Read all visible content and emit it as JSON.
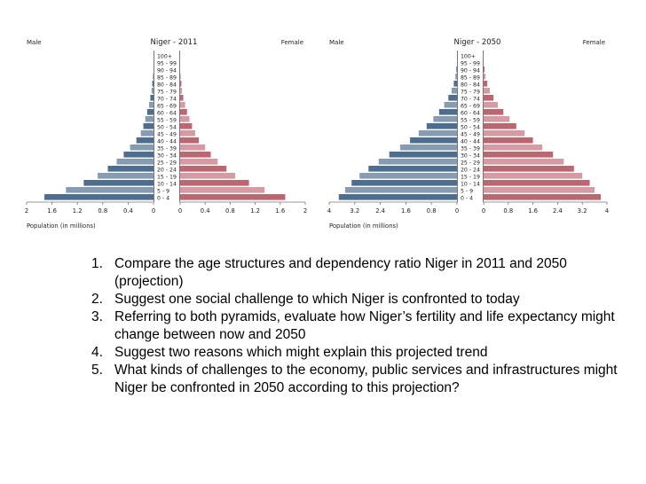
{
  "chart_data": [
    {
      "type": "bar",
      "orientation": "horizontal-pyramid",
      "title": "Niger - 2011",
      "left_label": "Male",
      "right_label": "Female",
      "xlabel": "Population (in millions)",
      "xlim": [
        0,
        2
      ],
      "x_ticks": [
        "2",
        "1.6",
        "1.2",
        "0.8",
        "0.4",
        "0",
        "0",
        "0.4",
        "0.8",
        "1.2",
        "1.6",
        "2"
      ],
      "x_tick_values": [
        2,
        1.6,
        1.2,
        0.8,
        0.4,
        0,
        0,
        0.4,
        0.8,
        1.2,
        1.6,
        2
      ],
      "categories": [
        "100+",
        "95 - 99",
        "90 - 94",
        "85 - 89",
        "80 - 84",
        "75 - 79",
        "70 - 74",
        "65 - 69",
        "60 - 64",
        "55 - 59",
        "50 - 54",
        "45 - 49",
        "40 - 44",
        "35 - 39",
        "30 - 34",
        "25 - 29",
        "20 - 24",
        "15 - 19",
        "10 - 14",
        "5 - 9",
        "0 - 4"
      ],
      "series": [
        {
          "name": "Male",
          "color": "#4f6d8f",
          "values": [
            0,
            0,
            0,
            0.01,
            0.02,
            0.03,
            0.05,
            0.07,
            0.1,
            0.13,
            0.16,
            0.2,
            0.27,
            0.37,
            0.47,
            0.58,
            0.72,
            0.88,
            1.1,
            1.38,
            1.72
          ]
        },
        {
          "name": "Female",
          "color": "#c06470",
          "values": [
            0,
            0,
            0,
            0.01,
            0.02,
            0.03,
            0.05,
            0.08,
            0.11,
            0.15,
            0.19,
            0.24,
            0.3,
            0.4,
            0.49,
            0.6,
            0.74,
            0.88,
            1.1,
            1.35,
            1.68
          ]
        }
      ]
    },
    {
      "type": "bar",
      "orientation": "horizontal-pyramid",
      "title": "Niger - 2050",
      "left_label": "Male",
      "right_label": "Female",
      "xlabel": "Population (in millions)",
      "xlim": [
        0,
        4
      ],
      "x_ticks": [
        "4",
        "3.2",
        "2.4",
        "1.6",
        "0.8",
        "0",
        "0",
        "0.8",
        "1.6",
        "2.4",
        "3.2",
        "4"
      ],
      "x_tick_values": [
        4,
        3.2,
        2.4,
        1.6,
        0.8,
        0,
        0,
        0.8,
        1.6,
        2.4,
        3.2,
        4
      ],
      "categories": [
        "100+",
        "95 - 99",
        "90 - 94",
        "85 - 89",
        "80 - 84",
        "75 - 79",
        "70 - 74",
        "65 - 69",
        "60 - 64",
        "55 - 59",
        "50 - 54",
        "45 - 49",
        "40 - 44",
        "35 - 39",
        "30 - 34",
        "25 - 29",
        "20 - 24",
        "15 - 19",
        "10 - 14",
        "5 - 9",
        "0 - 4"
      ],
      "series": [
        {
          "name": "Male",
          "color": "#4f6d8f",
          "values": [
            0,
            0,
            0.02,
            0.05,
            0.1,
            0.17,
            0.27,
            0.4,
            0.56,
            0.74,
            0.95,
            1.2,
            1.47,
            1.78,
            2.12,
            2.45,
            2.77,
            3.05,
            3.3,
            3.5,
            3.7
          ]
        },
        {
          "name": "Female",
          "color": "#c06470",
          "values": [
            0,
            0,
            0.03,
            0.06,
            0.12,
            0.2,
            0.32,
            0.46,
            0.64,
            0.84,
            1.06,
            1.33,
            1.6,
            1.9,
            2.25,
            2.6,
            2.93,
            3.2,
            3.44,
            3.6,
            3.8
          ]
        }
      ]
    }
  ],
  "questions": [
    {
      "num": "1.",
      "text": "Compare the age structures and dependency ratio Niger in 2011 and 2050 (projection)"
    },
    {
      "num": "2.",
      "text": "Suggest one social challenge to which Niger is confronted to today"
    },
    {
      "num": "3.",
      "text": "Referring to both pyramids, evaluate how Niger’s fertility and life expectancy might change between now and 2050"
    },
    {
      "num": "4.",
      "text": "Suggest two reasons which might explain this projected trend"
    },
    {
      "num": "5.",
      "text": "What kinds of challenges to the economy, public services and infrastructures might Niger be confronted in 2050 according to this projection?"
    }
  ]
}
